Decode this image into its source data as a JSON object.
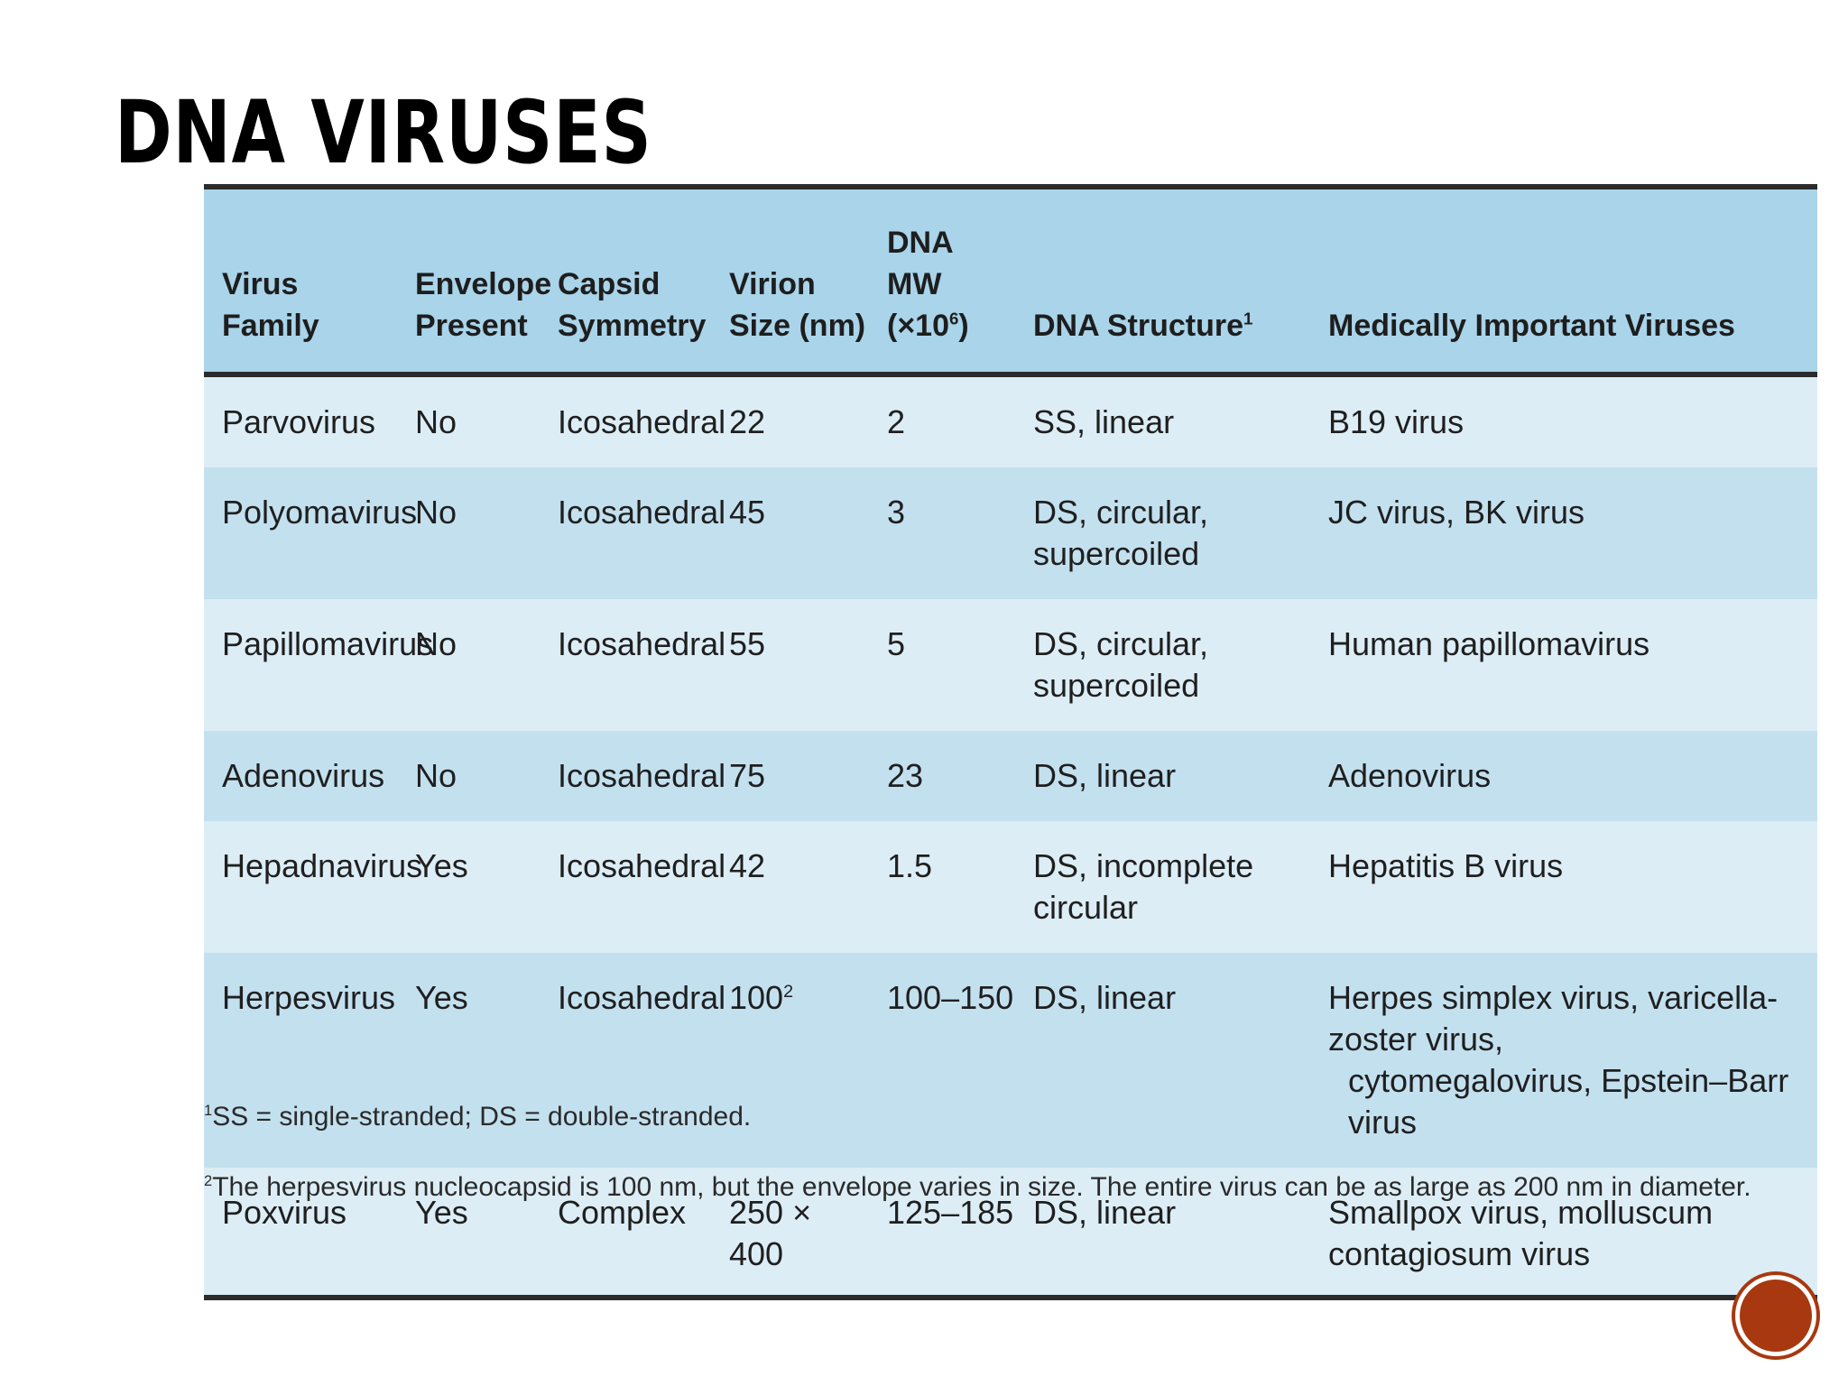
{
  "title": "DNA VIRUSES",
  "table": {
    "headers": [
      {
        "text": "Virus Family",
        "sup": ""
      },
      {
        "text": "Envelope Present",
        "sup": ""
      },
      {
        "text": "Capsid Symmetry",
        "sup": ""
      },
      {
        "text": "Virion Size (nm)",
        "sup": ""
      },
      {
        "text": "DNA MW (×10",
        "sup": "6",
        "after": ")"
      },
      {
        "text": "DNA Structure",
        "sup": "1",
        "after": ""
      },
      {
        "text": "Medically Important Viruses",
        "sup": ""
      }
    ],
    "rows": [
      {
        "family": "Parvovirus",
        "envelope": "No",
        "capsid": "Icosahedral",
        "size": "22",
        "size_sup": "",
        "mw": "2",
        "structure": "SS, linear",
        "viruses": [
          "B19 virus"
        ]
      },
      {
        "family": "Polyomavirus",
        "envelope": "No",
        "capsid": "Icosahedral",
        "size": "45",
        "size_sup": "",
        "mw": "3",
        "structure": "DS, circular, supercoiled",
        "viruses": [
          "JC virus, BK virus"
        ]
      },
      {
        "family": "Papillomavirus",
        "envelope": "No",
        "capsid": "Icosahedral",
        "size": "55",
        "size_sup": "",
        "mw": "5",
        "structure": "DS, circular, supercoiled",
        "viruses": [
          "Human papillomavirus"
        ]
      },
      {
        "family": "Adenovirus",
        "envelope": "No",
        "capsid": "Icosahedral",
        "size": "75",
        "size_sup": "",
        "mw": "23",
        "structure": "DS, linear",
        "viruses": [
          "Adenovirus"
        ]
      },
      {
        "family": "Hepadnavirus",
        "envelope": "Yes",
        "capsid": "Icosahedral",
        "size": "42",
        "size_sup": "",
        "mw": "1.5",
        "structure": "DS, incomplete circular",
        "viruses": [
          "Hepatitis B virus"
        ]
      },
      {
        "family": "Herpesvirus",
        "envelope": "Yes",
        "capsid": "Icosahedral",
        "size": "100",
        "size_sup": "2",
        "mw": "100–150",
        "structure": "DS, linear",
        "viruses": [
          "Herpes simplex virus, varicella-zoster virus,",
          "cytomegalovirus, Epstein–Barr virus"
        ]
      },
      {
        "family": "Poxvirus",
        "envelope": "Yes",
        "capsid": "Complex",
        "size": "250 × 400",
        "size_sup": "",
        "mw": "125–185",
        "structure": "DS, linear",
        "viruses": [
          "Smallpox virus, molluscum contagiosum virus"
        ]
      }
    ]
  },
  "footnotes": [
    {
      "marker": "1",
      "text": "SS = single-stranded; DS = double-stranded."
    },
    {
      "marker": "2",
      "text": "The herpesvirus nucleocapsid is 100 nm, but the envelope varies in size. The entire virus can be as large as 200 nm in diameter."
    }
  ],
  "colors": {
    "header_bg": "#a9d4ea",
    "row_light": "#dcedf6",
    "row_dark": "#c3e0ef",
    "nav_circle": "#a8380f"
  }
}
